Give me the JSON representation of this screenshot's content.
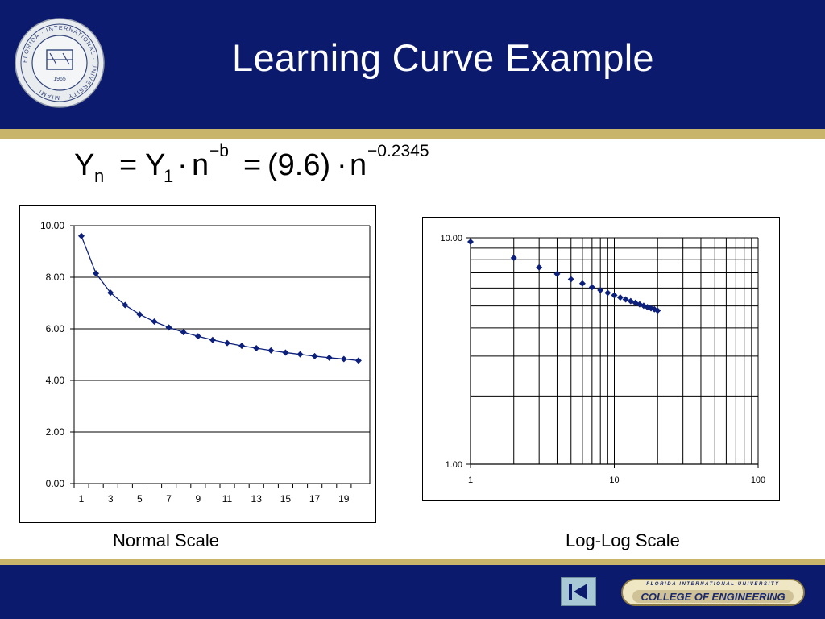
{
  "slide": {
    "title": "Learning Curve Example",
    "formula": {
      "y": "Y",
      "y_sub": "n",
      "eq1": "=",
      "y1": "Y",
      "y1_sub": "1",
      "dot1": "·",
      "n1": "n",
      "exp1": "−b",
      "eq2": "=",
      "coef": "(9.6)",
      "dot2": "·",
      "n2": "n",
      "exp2": "−0.2345"
    },
    "captions": {
      "left": "Normal Scale",
      "right": "Log-Log Scale"
    },
    "seal": {
      "ring_text": "FLORIDA · INTERNATIONAL · UNIVERSITY · MIAMI",
      "year": "1965"
    },
    "footer": {
      "nav_icon": "first-slide-icon",
      "badge_top": "FLORIDA INTERNATIONAL UNIVERSITY",
      "badge_main": "COLLEGE OF ENGINEERING"
    },
    "colors": {
      "header_blue": "#0c1a6e",
      "gold": "#c9b46b",
      "series": "#0c1f7a"
    }
  },
  "chart_data": [
    {
      "type": "line",
      "x": [
        1,
        2,
        3,
        4,
        5,
        6,
        7,
        8,
        9,
        10,
        11,
        12,
        13,
        14,
        15,
        16,
        17,
        18,
        19,
        20
      ],
      "values": [
        9.6,
        8.15,
        7.4,
        6.92,
        6.56,
        6.28,
        6.05,
        5.87,
        5.71,
        5.57,
        5.45,
        5.34,
        5.25,
        5.16,
        5.08,
        5.01,
        4.94,
        4.88,
        4.83,
        4.77
      ],
      "ylim": [
        0,
        10
      ],
      "yticks": [
        "0.00",
        "2.00",
        "4.00",
        "6.00",
        "8.00",
        "10.00"
      ],
      "xticks": [
        "1",
        "3",
        "5",
        "7",
        "9",
        "11",
        "13",
        "15",
        "17",
        "19"
      ],
      "grid": true,
      "title": "",
      "xlabel": "",
      "ylabel": ""
    },
    {
      "type": "scatter",
      "scale": "log-log",
      "x": [
        1,
        2,
        3,
        4,
        5,
        6,
        7,
        8,
        9,
        10,
        11,
        12,
        13,
        14,
        15,
        16,
        17,
        18,
        19,
        20
      ],
      "values": [
        9.6,
        8.15,
        7.4,
        6.92,
        6.56,
        6.28,
        6.05,
        5.87,
        5.71,
        5.57,
        5.45,
        5.34,
        5.25,
        5.16,
        5.08,
        5.01,
        4.94,
        4.88,
        4.83,
        4.77
      ],
      "xlim": [
        1,
        100
      ],
      "ylim": [
        1,
        10
      ],
      "yticks": [
        "1.00",
        "10.00"
      ],
      "xticks": [
        "1",
        "10",
        "100"
      ],
      "grid": true,
      "title": "",
      "xlabel": "",
      "ylabel": ""
    }
  ]
}
